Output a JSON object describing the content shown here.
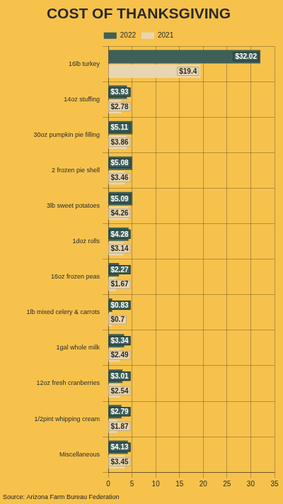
{
  "chart_data": {
    "type": "bar",
    "orientation": "horizontal",
    "title": "COST OF THANKSGIVING",
    "source": "Source: Arizona Farm Bureau Federation",
    "categories": [
      "16lb turkey",
      "14oz stuffing",
      "30oz pumpkin pie filling",
      "2 frozen pie shell",
      "3lb sweet potatoes",
      "1doz rolls",
      "16oz frozen peas",
      "1lb mixed celery & carrots",
      "1gal whole milk",
      "12oz fresh cranberries",
      "1/2pint whipping cream",
      "Miscellaneous"
    ],
    "series": [
      {
        "name": "2022",
        "color": "#3f5f59",
        "values": [
          32.02,
          3.93,
          5.11,
          5.08,
          5.09,
          4.28,
          2.27,
          0.83,
          3.34,
          3.01,
          2.79,
          4.13
        ],
        "value_labels": [
          "$32.02",
          "$3.93",
          "$5.11",
          "$5.08",
          "$5.09",
          "$4.28",
          "$2.27",
          "$0.83",
          "$3.34",
          "$3.01",
          "$2.79",
          "$4.13"
        ]
      },
      {
        "name": "2021",
        "color": "#e9d6b0",
        "values": [
          19.4,
          2.78,
          3.86,
          3.46,
          4.26,
          3.14,
          1.67,
          0.7,
          2.49,
          2.54,
          1.87,
          3.45
        ],
        "value_labels": [
          "$19.4",
          "$2.78",
          "$3.86",
          "$3.46",
          "$4.26",
          "$3.14",
          "$1.67",
          "$0.7",
          "$2.49",
          "$2.54",
          "$1.87",
          "$3.45"
        ]
      }
    ],
    "xlim": [
      0,
      35
    ],
    "xticks": [
      0,
      5,
      10,
      15,
      20,
      25,
      30,
      35
    ],
    "grid": true,
    "legend": "top",
    "data_labels": true
  }
}
